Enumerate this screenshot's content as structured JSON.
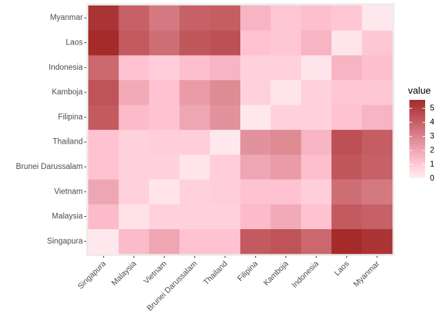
{
  "chart_data": {
    "type": "heatmap",
    "title": "",
    "xlabel": "",
    "ylabel": "",
    "x_categories": [
      "Singapura",
      "Malaysia",
      "Vietnam",
      "Brunei Darussalam",
      "Thailand",
      "Filipina",
      "Kamboja",
      "Indonesia",
      "Laos",
      "Myanmar"
    ],
    "y_categories": [
      "Singapura",
      "Malaysia",
      "Vietnam",
      "Brunei Darussalam",
      "Thailand",
      "Filipina",
      "Kamboja",
      "Indonesia",
      "Laos",
      "Myanmar"
    ],
    "values": [
      [
        0.2,
        1.4,
        2.0,
        1.2,
        1.2,
        4.2,
        4.4,
        3.8,
        5.6,
        5.3
      ],
      [
        1.4,
        0.4,
        0.8,
        0.8,
        0.8,
        1.4,
        1.9,
        1.2,
        4.2,
        4.0
      ],
      [
        2.0,
        0.8,
        0.3,
        0.8,
        0.9,
        1.2,
        1.2,
        0.9,
        3.6,
        3.3
      ],
      [
        1.2,
        0.8,
        0.8,
        0.3,
        0.9,
        2.0,
        2.3,
        1.3,
        4.3,
        4.0
      ],
      [
        1.2,
        0.8,
        0.9,
        0.9,
        0.2,
        2.6,
        2.8,
        1.6,
        4.5,
        4.1
      ],
      [
        4.2,
        1.4,
        1.2,
        2.0,
        2.6,
        0.2,
        0.8,
        0.8,
        1.2,
        1.6
      ],
      [
        4.4,
        1.9,
        1.2,
        2.3,
        2.8,
        0.8,
        0.3,
        0.8,
        1.1,
        1.1
      ],
      [
        3.8,
        1.2,
        0.9,
        1.3,
        1.6,
        0.8,
        0.8,
        0.3,
        1.6,
        1.3
      ],
      [
        5.6,
        4.2,
        3.6,
        4.3,
        4.5,
        1.2,
        1.1,
        1.6,
        0.3,
        1.1
      ],
      [
        5.3,
        4.0,
        3.3,
        4.0,
        4.1,
        1.6,
        1.1,
        1.3,
        1.1,
        0.2
      ]
    ],
    "legend": {
      "title": "value",
      "ticks": [
        0,
        1,
        2,
        3,
        4,
        5
      ],
      "tick_labels": [
        "0",
        "1",
        "2",
        "3",
        "4",
        "5"
      ],
      "range": [
        0,
        5.6
      ],
      "placement": "right"
    },
    "colors": {
      "low": "#fff0f3",
      "mid": "#ffc2d1",
      "high": "#a52a2a",
      "panel_background": "#ebebeb"
    },
    "grid": true
  }
}
